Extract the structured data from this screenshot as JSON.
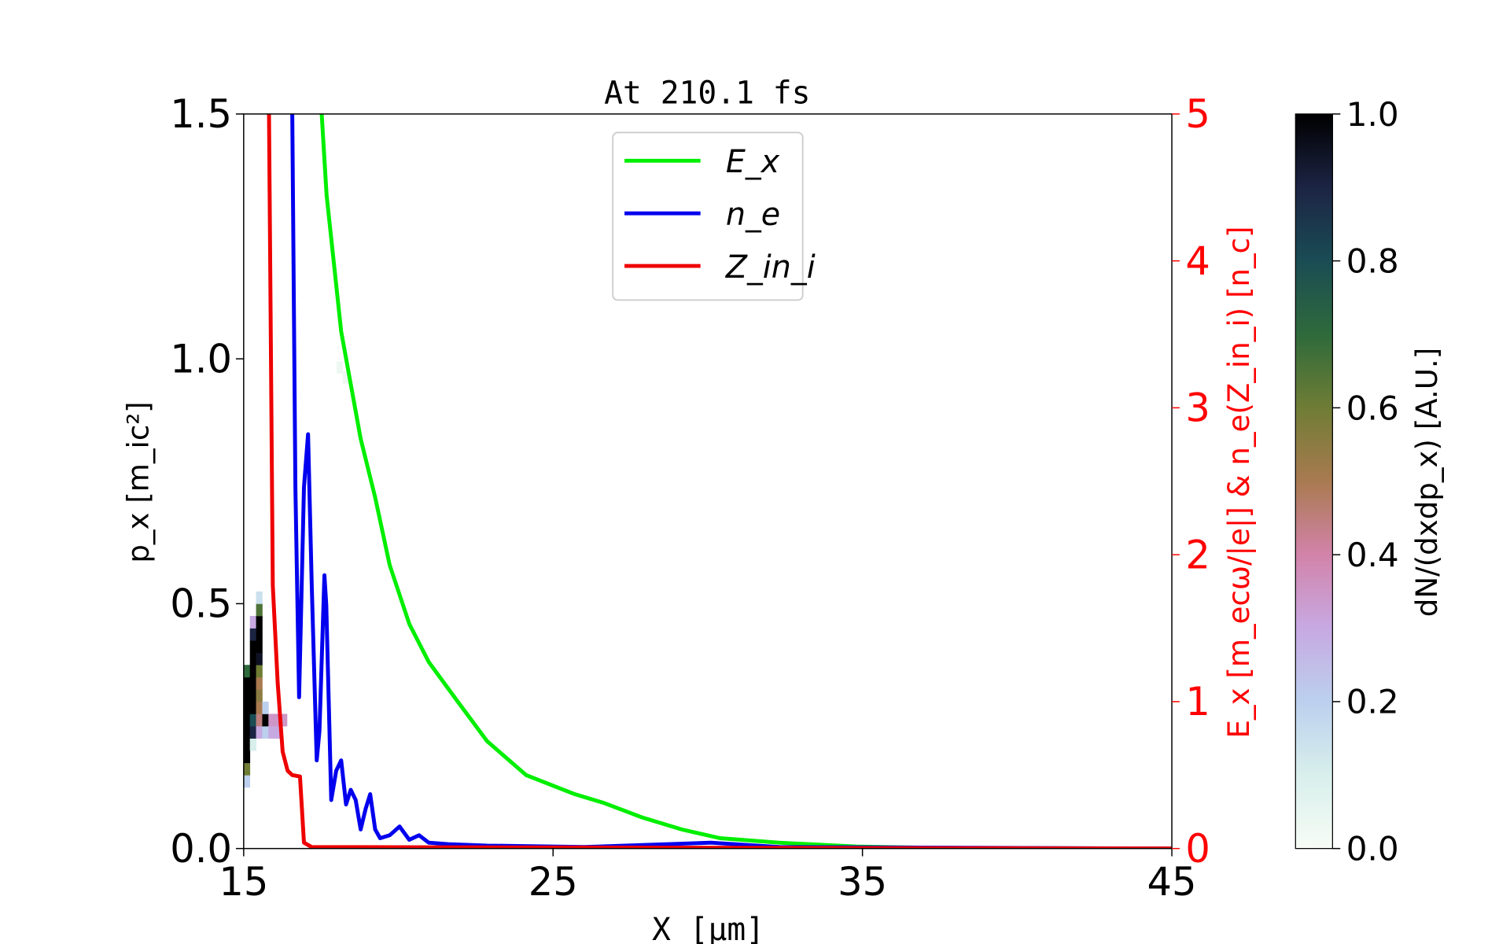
{
  "chart_data": {
    "type": "line",
    "title": "At 210.1 fs",
    "xlabel": "X [μm]",
    "ylabel_left": "p_x [m_ic²]",
    "ylabel_right": "E_x [m_ecω/|e|] & n_e(Z_in_i) [n_c]",
    "colorbar_label": "dN/(dxdp_x) [A.U.]",
    "xlim": [
      15,
      45
    ],
    "ylim_left": [
      0,
      1.5
    ],
    "ylim_right": [
      0,
      5
    ],
    "clim": [
      0,
      1
    ],
    "xticks": [
      "15",
      "25",
      "35",
      "45"
    ],
    "xtick_values": [
      15,
      25,
      35,
      45
    ],
    "yticks_left": [
      "0.0",
      "0.5",
      "1.0",
      "1.5"
    ],
    "ytick_left_values": [
      0,
      0.5,
      1.0,
      1.5
    ],
    "yticks_right": [
      "0",
      "1",
      "2",
      "3",
      "4",
      "5"
    ],
    "ytick_right_values": [
      0,
      1,
      2,
      3,
      4,
      5
    ],
    "colorbar_ticks": [
      "0.0",
      "0.2",
      "0.4",
      "0.6",
      "0.8",
      "1.0"
    ],
    "colorbar_tick_values": [
      0,
      0.2,
      0.4,
      0.6,
      0.8,
      1.0
    ],
    "legend_position": "top-center",
    "series": [
      {
        "name": "E_x",
        "color": "#00ee00",
        "axis": "right",
        "x": [
          17.52,
          17.68,
          18.15,
          18.78,
          19.25,
          19.72,
          20.35,
          20.98,
          21.92,
          22.87,
          24.13,
          25.7,
          26.65,
          27.9,
          29.16,
          30.4,
          32.3,
          34.8,
          38.6,
          45
        ],
        "y": [
          5.0,
          4.45,
          3.52,
          2.79,
          2.39,
          1.93,
          1.53,
          1.27,
          1.0,
          0.73,
          0.5,
          0.37,
          0.31,
          0.21,
          0.13,
          0.07,
          0.04,
          0.013,
          0.0,
          0.0
        ]
      },
      {
        "name": "n_e",
        "color": "#0000ee",
        "axis": "right",
        "x": [
          16.57,
          16.67,
          16.79,
          16.95,
          17.08,
          17.2,
          17.36,
          17.45,
          17.61,
          17.67,
          17.83,
          17.99,
          18.15,
          18.31,
          18.46,
          18.62,
          18.78,
          18.94,
          19.09,
          19.25,
          19.41,
          19.72,
          20.04,
          20.35,
          20.67,
          20.98,
          21.61,
          22.87,
          26.0,
          30.1,
          32.3,
          45
        ],
        "y": [
          5.0,
          2.46,
          1.03,
          2.46,
          2.82,
          1.79,
          0.6,
          0.8,
          1.86,
          1.66,
          0.33,
          0.53,
          0.6,
          0.3,
          0.4,
          0.33,
          0.13,
          0.27,
          0.37,
          0.13,
          0.07,
          0.09,
          0.15,
          0.06,
          0.09,
          0.04,
          0.03,
          0.02,
          0.01,
          0.04,
          0.01,
          0.0
        ]
      },
      {
        "name": "Z_in_i",
        "color": "#ee0000",
        "axis": "right",
        "x": [
          15.82,
          15.94,
          16.1,
          16.26,
          16.42,
          16.57,
          16.82,
          16.95,
          17.2,
          45
        ],
        "y": [
          5.0,
          1.79,
          1.13,
          0.66,
          0.53,
          0.5,
          0.49,
          0.04,
          0.01,
          0.0
        ]
      }
    ],
    "heatmap": {
      "name": "dN/(dxdp_x)",
      "dx": 0.2,
      "dp": 0.025,
      "cells": [
        {
          "x": 15.0,
          "p": 0.125,
          "v": 0.2
        },
        {
          "x": 15.0,
          "p": 0.15,
          "v": 0.6
        },
        {
          "x": 15.0,
          "p": 0.175,
          "v": 1.0
        },
        {
          "x": 15.0,
          "p": 0.2,
          "v": 1.0
        },
        {
          "x": 15.0,
          "p": 0.225,
          "v": 1.0
        },
        {
          "x": 15.0,
          "p": 0.25,
          "v": 1.0
        },
        {
          "x": 15.0,
          "p": 0.275,
          "v": 1.0
        },
        {
          "x": 15.0,
          "p": 0.3,
          "v": 1.0
        },
        {
          "x": 15.0,
          "p": 0.325,
          "v": 1.0
        },
        {
          "x": 15.0,
          "p": 0.35,
          "v": 0.7
        },
        {
          "x": 15.2,
          "p": 0.2,
          "v": 0.1
        },
        {
          "x": 15.2,
          "p": 0.225,
          "v": 0.9
        },
        {
          "x": 15.2,
          "p": 0.25,
          "v": 0.8
        },
        {
          "x": 15.2,
          "p": 0.275,
          "v": 1.0
        },
        {
          "x": 15.2,
          "p": 0.3,
          "v": 1.0
        },
        {
          "x": 15.2,
          "p": 0.325,
          "v": 1.0
        },
        {
          "x": 15.2,
          "p": 0.35,
          "v": 1.0
        },
        {
          "x": 15.2,
          "p": 0.375,
          "v": 1.0
        },
        {
          "x": 15.2,
          "p": 0.4,
          "v": 1.0
        },
        {
          "x": 15.2,
          "p": 0.425,
          "v": 0.9
        },
        {
          "x": 15.2,
          "p": 0.45,
          "v": 0.3
        },
        {
          "x": 15.4,
          "p": 0.225,
          "v": 0.3
        },
        {
          "x": 15.4,
          "p": 0.25,
          "v": 0.45
        },
        {
          "x": 15.4,
          "p": 0.275,
          "v": 0.5
        },
        {
          "x": 15.4,
          "p": 0.3,
          "v": 0.55
        },
        {
          "x": 15.4,
          "p": 0.325,
          "v": 0.5
        },
        {
          "x": 15.4,
          "p": 0.35,
          "v": 0.6
        },
        {
          "x": 15.4,
          "p": 0.375,
          "v": 0.95
        },
        {
          "x": 15.4,
          "p": 0.4,
          "v": 1.0
        },
        {
          "x": 15.4,
          "p": 0.425,
          "v": 1.0
        },
        {
          "x": 15.4,
          "p": 0.45,
          "v": 1.0
        },
        {
          "x": 15.4,
          "p": 0.475,
          "v": 0.65
        },
        {
          "x": 15.4,
          "p": 0.5,
          "v": 0.15
        },
        {
          "x": 15.6,
          "p": 0.225,
          "v": 0.2
        },
        {
          "x": 15.6,
          "p": 0.25,
          "v": 1.0
        },
        {
          "x": 15.6,
          "p": 0.275,
          "v": 0.2
        },
        {
          "x": 15.8,
          "p": 0.225,
          "v": 0.3
        },
        {
          "x": 15.8,
          "p": 0.25,
          "v": 0.35
        },
        {
          "x": 16.0,
          "p": 0.225,
          "v": 0.3
        },
        {
          "x": 16.0,
          "p": 0.25,
          "v": 0.35
        },
        {
          "x": 16.2,
          "p": 0.25,
          "v": 0.35
        },
        {
          "x": 18.0,
          "p": 0.97,
          "v": 0.03
        },
        {
          "x": 18.2,
          "p": 0.95,
          "v": 0.03
        }
      ]
    }
  }
}
